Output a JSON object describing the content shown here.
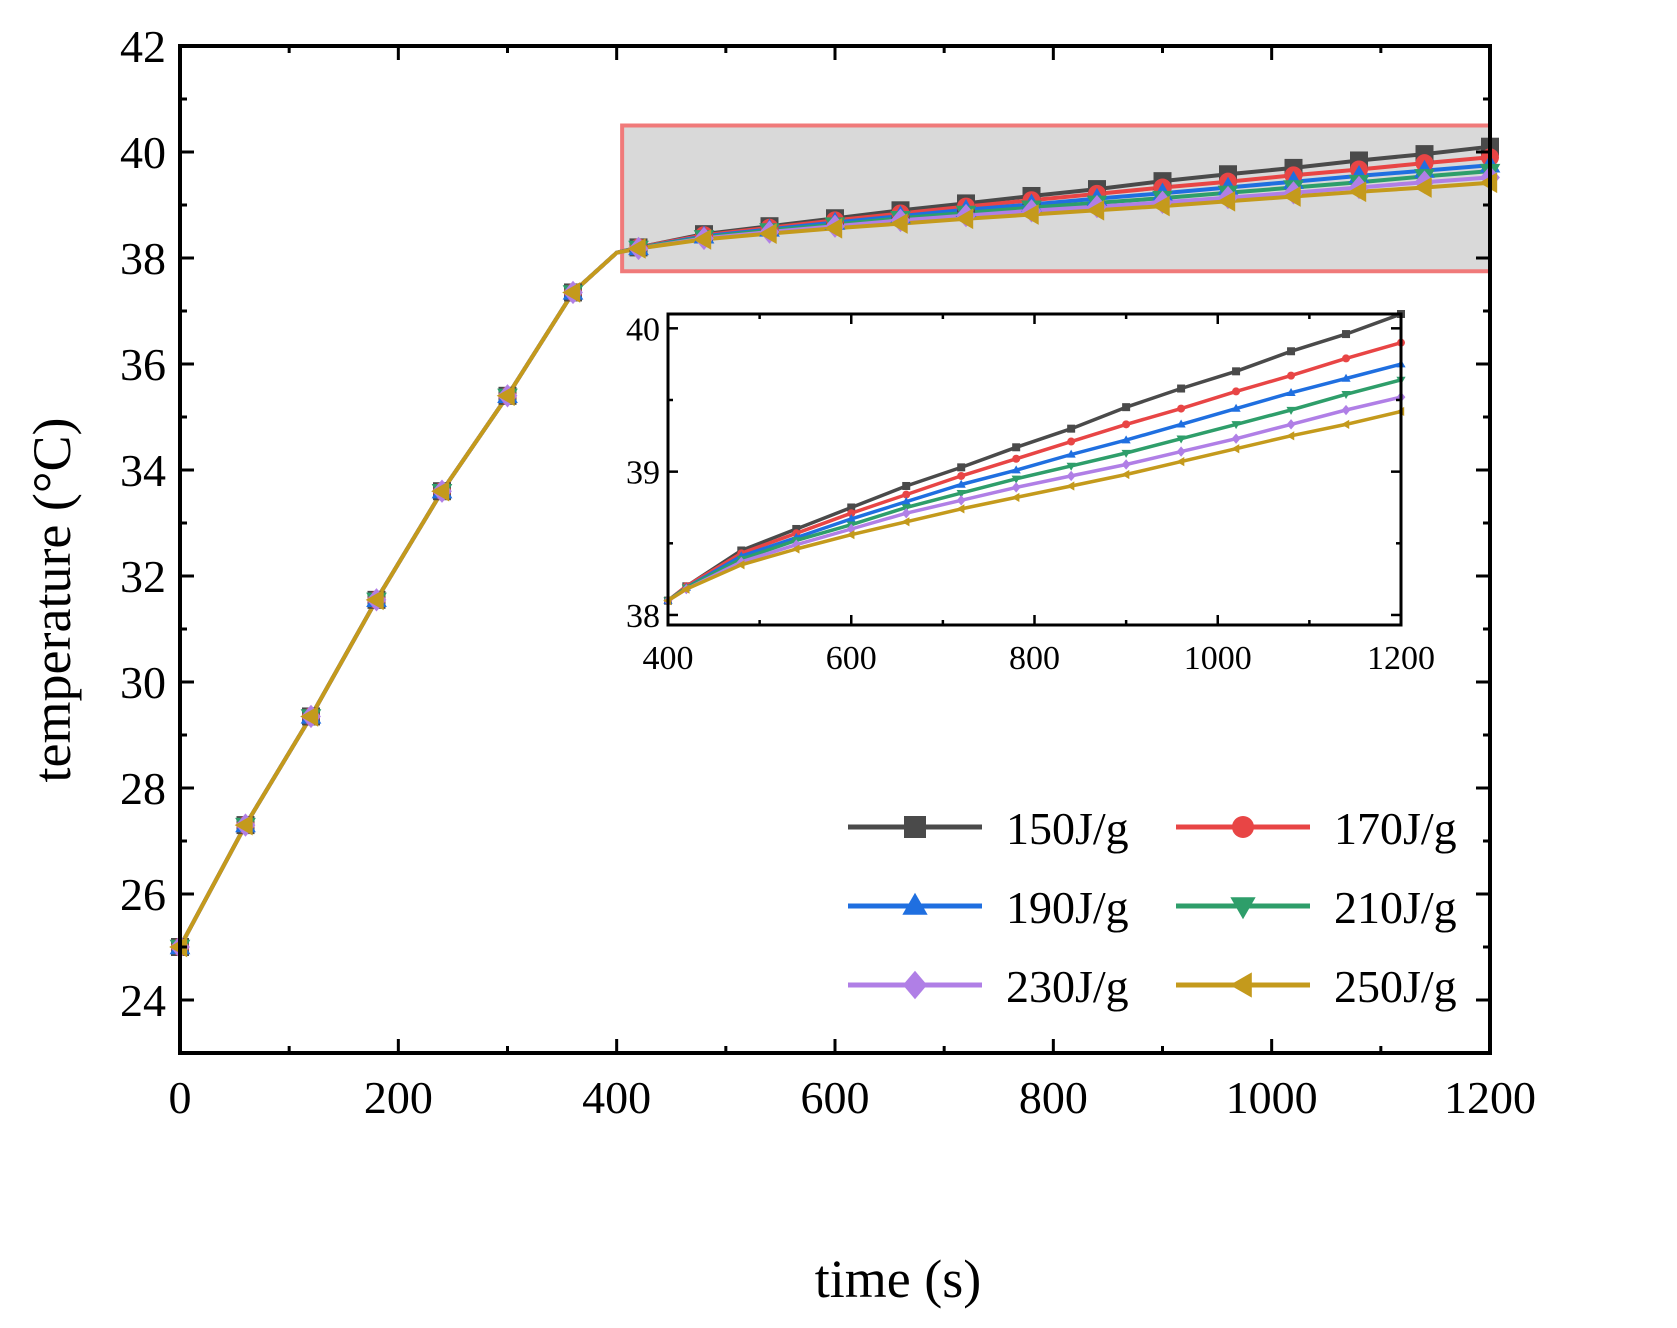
{
  "chart_data": [
    {
      "type": "line",
      "role": "main",
      "xlabel": "time (s)",
      "ylabel": "temperature (°C)",
      "xlim": [
        0,
        1200
      ],
      "ylim": [
        23,
        42
      ],
      "x_ticks": [
        "0",
        "200",
        "400",
        "600",
        "800",
        "1000",
        "1200"
      ],
      "y_ticks": [
        "24",
        "26",
        "28",
        "30",
        "32",
        "34",
        "36",
        "38",
        "40",
        "42"
      ],
      "x_tick_values": [
        0,
        200,
        400,
        600,
        800,
        1000,
        1200
      ],
      "y_tick_values": [
        24,
        26,
        28,
        30,
        32,
        34,
        36,
        38,
        40,
        42
      ],
      "highlight_region": {
        "x": [
          405,
          1200
        ],
        "y": [
          37.75,
          40.5
        ],
        "color": "#d9d9d9",
        "border": "#f07a7a"
      },
      "legend_position": "lower-right",
      "series": [
        {
          "name": "150J/g",
          "color": "#4a4a4a",
          "marker": "square",
          "x": [
            0,
            60,
            120,
            180,
            240,
            300,
            360,
            400,
            420,
            480,
            540,
            600,
            660,
            720,
            780,
            840,
            900,
            960,
            1020,
            1080,
            1140,
            1200
          ],
          "y": [
            25.0,
            27.3,
            29.35,
            31.55,
            33.6,
            35.4,
            37.35,
            38.1,
            38.2,
            38.45,
            38.6,
            38.75,
            38.9,
            39.03,
            39.17,
            39.3,
            39.45,
            39.58,
            39.7,
            39.84,
            39.96,
            40.1
          ]
        },
        {
          "name": "170J/g",
          "color": "#e84545",
          "marker": "circle",
          "x": [
            0,
            60,
            120,
            180,
            240,
            300,
            360,
            400,
            420,
            480,
            540,
            600,
            660,
            720,
            780,
            840,
            900,
            960,
            1020,
            1080,
            1140,
            1200
          ],
          "y": [
            25.0,
            27.3,
            29.35,
            31.55,
            33.6,
            35.4,
            37.35,
            38.1,
            38.2,
            38.43,
            38.57,
            38.71,
            38.84,
            38.97,
            39.09,
            39.21,
            39.33,
            39.44,
            39.56,
            39.67,
            39.79,
            39.9
          ]
        },
        {
          "name": "190J/g",
          "color": "#1f6fe0",
          "marker": "triangle-up",
          "x": [
            0,
            60,
            120,
            180,
            240,
            300,
            360,
            400,
            420,
            480,
            540,
            600,
            660,
            720,
            780,
            840,
            900,
            960,
            1020,
            1080,
            1140,
            1200
          ],
          "y": [
            25.0,
            27.3,
            29.35,
            31.55,
            33.6,
            35.4,
            37.35,
            38.1,
            38.19,
            38.41,
            38.54,
            38.67,
            38.79,
            38.91,
            39.01,
            39.12,
            39.22,
            39.33,
            39.44,
            39.55,
            39.65,
            39.75
          ]
        },
        {
          "name": "210J/g",
          "color": "#2e9e6a",
          "marker": "triangle-down",
          "x": [
            0,
            60,
            120,
            180,
            240,
            300,
            360,
            400,
            420,
            480,
            540,
            600,
            660,
            720,
            780,
            840,
            900,
            960,
            1020,
            1080,
            1140,
            1200
          ],
          "y": [
            25.0,
            27.3,
            29.35,
            31.55,
            33.6,
            35.4,
            37.35,
            38.1,
            38.19,
            38.39,
            38.52,
            38.63,
            38.75,
            38.85,
            38.95,
            39.04,
            39.13,
            39.23,
            39.33,
            39.43,
            39.54,
            39.64
          ]
        },
        {
          "name": "230J/g",
          "color": "#b07fe6",
          "marker": "diamond",
          "x": [
            0,
            60,
            120,
            180,
            240,
            300,
            360,
            400,
            420,
            480,
            540,
            600,
            660,
            720,
            780,
            840,
            900,
            960,
            1020,
            1080,
            1140,
            1200
          ],
          "y": [
            25.0,
            27.3,
            29.35,
            31.55,
            33.6,
            35.4,
            37.35,
            38.1,
            38.18,
            38.37,
            38.49,
            38.6,
            38.71,
            38.8,
            38.89,
            38.97,
            39.05,
            39.14,
            39.23,
            39.33,
            39.43,
            39.52
          ]
        },
        {
          "name": "250J/g",
          "color": "#c49a1c",
          "marker": "triangle-left",
          "x": [
            0,
            60,
            120,
            180,
            240,
            300,
            360,
            400,
            420,
            480,
            540,
            600,
            660,
            720,
            780,
            840,
            900,
            960,
            1020,
            1080,
            1140,
            1200
          ],
          "y": [
            25.0,
            27.3,
            29.35,
            31.55,
            33.6,
            35.4,
            37.35,
            38.1,
            38.18,
            38.35,
            38.46,
            38.56,
            38.65,
            38.74,
            38.82,
            38.9,
            38.98,
            39.07,
            39.16,
            39.25,
            39.33,
            39.42
          ]
        }
      ]
    },
    {
      "type": "line",
      "role": "inset",
      "xlim": [
        400,
        1200
      ],
      "ylim": [
        37.93,
        40.1
      ],
      "x_ticks": [
        "400",
        "600",
        "800",
        "1000",
        "1200"
      ],
      "y_ticks": [
        "38",
        "39",
        "40"
      ],
      "x_tick_values": [
        400,
        600,
        800,
        1000,
        1200
      ],
      "y_tick_values": [
        38,
        39,
        40
      ],
      "series_ref": "main"
    }
  ]
}
